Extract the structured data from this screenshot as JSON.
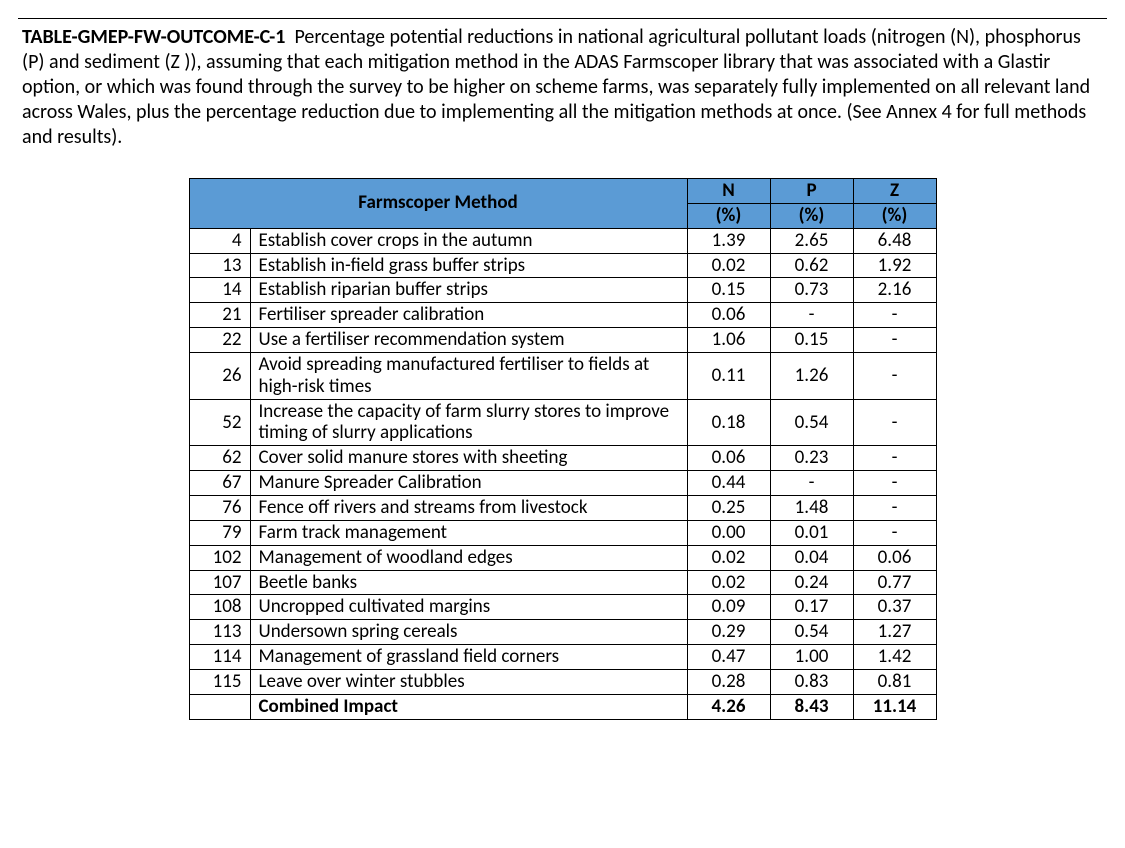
{
  "caption": {
    "table_id": "TABLE-GMEP-FW-OUTCOME-C-1",
    "text": "Percentage potential reductions in national agricultural pollutant loads (nitrogen (N), phosphorus (P) and sediment (Z )), assuming that each mitigation method in the ADAS Farmscoper library that was associated with a Glastir option, or which was found through the survey to be higher on scheme farms, was separately fully implemented on all relevant land across Wales, plus the percentage reduction due to implementing all the mitigation methods at once. (See Annex 4 for full methods and results)."
  },
  "table": {
    "type": "table",
    "header_bg": "#5b9bd5",
    "border_color": "#000000",
    "font_family": "Calibri",
    "columns": {
      "method_label": "Farmscoper Method",
      "n_top": "N",
      "n_sub": "(%)",
      "p_top": "P",
      "p_sub": "(%)",
      "z_top": "Z",
      "z_sub": "(%)"
    },
    "rows": [
      {
        "id": "4",
        "method": "Establish cover crops in the autumn",
        "n": "1.39",
        "p": "2.65",
        "z": "6.48"
      },
      {
        "id": "13",
        "method": "Establish in-field grass buffer strips",
        "n": "0.02",
        "p": "0.62",
        "z": "1.92"
      },
      {
        "id": "14",
        "method": "Establish riparian buffer strips",
        "n": "0.15",
        "p": "0.73",
        "z": "2.16"
      },
      {
        "id": "21",
        "method": "Fertiliser spreader calibration",
        "n": "0.06",
        "p": "-",
        "z": "-"
      },
      {
        "id": "22",
        "method": "Use a fertiliser recommendation system",
        "n": "1.06",
        "p": "0.15",
        "z": "-"
      },
      {
        "id": "26",
        "method": "Avoid spreading manufactured fertiliser to fields at high-risk times",
        "n": "0.11",
        "p": "1.26",
        "z": "-"
      },
      {
        "id": "52",
        "method": "Increase the capacity of farm slurry stores to improve timing of slurry applications",
        "n": "0.18",
        "p": "0.54",
        "z": "-"
      },
      {
        "id": "62",
        "method": "Cover solid manure stores with sheeting",
        "n": "0.06",
        "p": "0.23",
        "z": "-"
      },
      {
        "id": "67",
        "method": "Manure Spreader Calibration",
        "n": "0.44",
        "p": "-",
        "z": "-"
      },
      {
        "id": "76",
        "method": "Fence off rivers and streams from livestock",
        "n": "0.25",
        "p": "1.48",
        "z": "-"
      },
      {
        "id": "79",
        "method": "Farm track management",
        "n": "0.00",
        "p": "0.01",
        "z": "-"
      },
      {
        "id": "102",
        "method": "Management of woodland edges",
        "n": "0.02",
        "p": "0.04",
        "z": "0.06"
      },
      {
        "id": "107",
        "method": "Beetle banks",
        "n": "0.02",
        "p": "0.24",
        "z": "0.77"
      },
      {
        "id": "108",
        "method": "Uncropped cultivated margins",
        "n": "0.09",
        "p": "0.17",
        "z": "0.37"
      },
      {
        "id": "113",
        "method": "Undersown spring cereals",
        "n": "0.29",
        "p": "0.54",
        "z": "1.27"
      },
      {
        "id": "114",
        "method": "Management of grassland field corners",
        "n": "0.47",
        "p": "1.00",
        "z": "1.42"
      },
      {
        "id": "115",
        "method": "Leave over winter stubbles",
        "n": "0.28",
        "p": "0.83",
        "z": "0.81"
      }
    ],
    "combined": {
      "id": "",
      "method": "Combined Impact",
      "n": "4.26",
      "p": "8.43",
      "z": "11.14"
    }
  }
}
